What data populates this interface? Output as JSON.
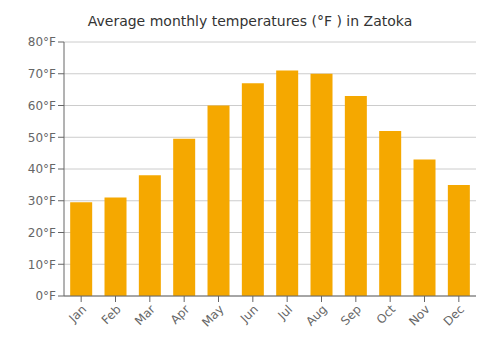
{
  "chart_data": {
    "type": "bar",
    "title": "Average monthly temperatures (°F ) in Zatoka",
    "categories": [
      "Jan",
      "Feb",
      "Mar",
      "Apr",
      "May",
      "Jun",
      "Jul",
      "Aug",
      "Sep",
      "Oct",
      "Nov",
      "Dec"
    ],
    "values": [
      29.5,
      31.0,
      38.0,
      49.5,
      60.0,
      67.0,
      71.0,
      70.0,
      63.0,
      52.0,
      43.0,
      35.0
    ],
    "color": "#F5A800",
    "ylim": [
      0,
      80
    ],
    "yticks": [
      {
        "value": 0,
        "label": "0°F"
      },
      {
        "value": 10,
        "label": "10°F"
      },
      {
        "value": 20,
        "label": "20°F"
      },
      {
        "value": 30,
        "label": "30°F"
      },
      {
        "value": 40,
        "label": "40°F"
      },
      {
        "value": 50,
        "label": "50°F"
      },
      {
        "value": 60,
        "label": "60°F"
      },
      {
        "value": 70,
        "label": "70°F"
      },
      {
        "value": 80,
        "label": "80°F"
      }
    ],
    "grid": true
  }
}
